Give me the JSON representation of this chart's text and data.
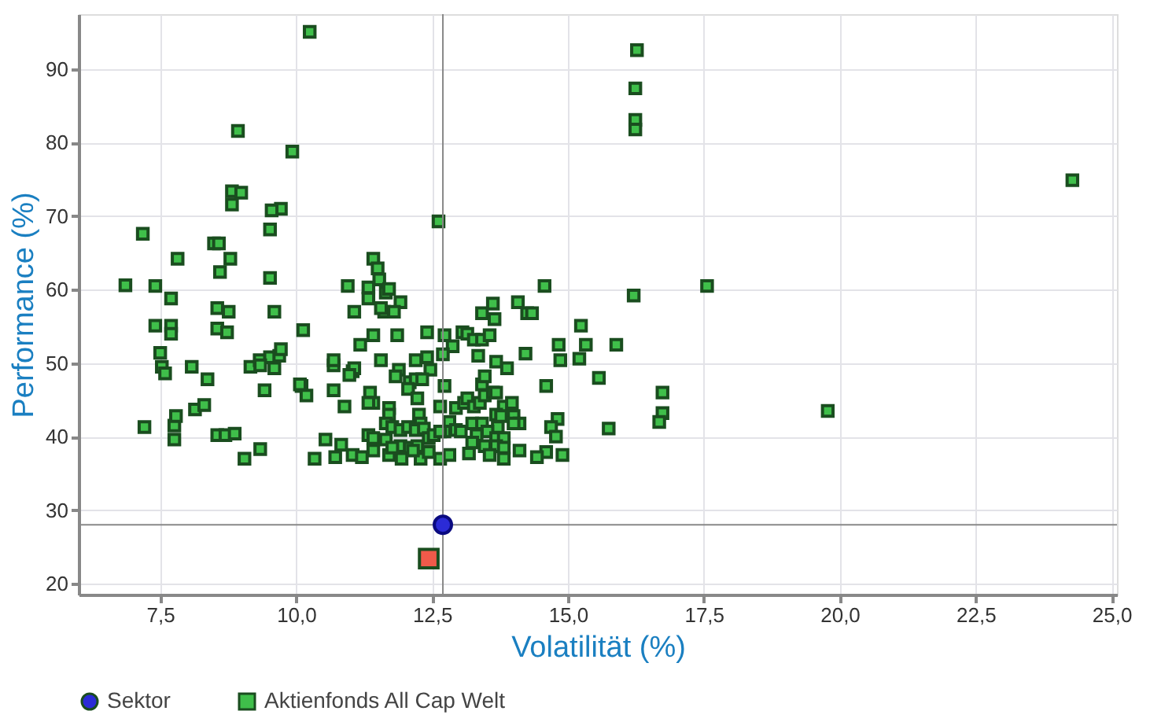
{
  "chart_data": {
    "type": "scatter",
    "xlabel": "Volatilität (%)",
    "ylabel": "Performance (%)",
    "xlim": [
      6.0,
      25.1
    ],
    "ylim": [
      18.5,
      97.5
    ],
    "xticks": [
      {
        "value": 7.5,
        "label": "7,5"
      },
      {
        "value": 10.0,
        "label": "10,0"
      },
      {
        "value": 12.5,
        "label": "12,5"
      },
      {
        "value": 15.0,
        "label": "15,0"
      },
      {
        "value": 17.5,
        "label": "17,5"
      },
      {
        "value": 20.0,
        "label": "20,0"
      },
      {
        "value": 22.5,
        "label": "22,5"
      },
      {
        "value": 25.0,
        "label": "25,0"
      }
    ],
    "yticks": [
      20,
      30,
      40,
      50,
      60,
      70,
      80,
      90
    ],
    "grid": true,
    "legend": "bottom",
    "ref_lines": [
      {
        "axis": "x",
        "value": 12.7,
        "color": "#888888"
      },
      {
        "axis": "y",
        "value": 28,
        "color": "#888888"
      }
    ],
    "series": [
      {
        "color": "#f05a4a",
        "marker": "square",
        "x": [
          12.44
        ],
        "values": [
          23.4
        ]
      },
      {
        "name": "Sektor",
        "color": "#2b2bd6",
        "marker": "circle",
        "x": [
          12.7
        ],
        "values": [
          28.0
        ]
      },
      {
        "name": "Aktienfonds All Cap  Welt",
        "color": "#3fbf4a",
        "marker": "square",
        "x": [
          10.25,
          8.93,
          9.93,
          8.82,
          8.99,
          8.82,
          9.72,
          9.55,
          9.52,
          7.18,
          7.82,
          8.49,
          8.58,
          8.79,
          8.6,
          9.52,
          6.86,
          7.41,
          7.7,
          8.55,
          8.76,
          9.6,
          7.41,
          7.7,
          7.7,
          8.55,
          8.73,
          10.13,
          7.5,
          7.53,
          7.59,
          8.08,
          8.37,
          9.16,
          9.33,
          9.52,
          9.69,
          9.72,
          9.6,
          9.34,
          9.42,
          10.1,
          10.19,
          8.14,
          8.31,
          7.76,
          7.79,
          7.21,
          8.55,
          8.7,
          8.87,
          9.34,
          9.05,
          7.76,
          10.34,
          12.62,
          11.42,
          11.5,
          11.53,
          10.95,
          11.33,
          11.33,
          11.65,
          11.71,
          11.92,
          11.62,
          11.8,
          11.56,
          11.07,
          11.42,
          11.86,
          11.18,
          12.41,
          12.73,
          13.06,
          13.15,
          13.27,
          13.42,
          13.56,
          12.88,
          13.35,
          13.42,
          13.62,
          13.65,
          14.08,
          14.25,
          14.34,
          14.57,
          15.24,
          14.83,
          15.33,
          14.86,
          15.21,
          15.89,
          16.21,
          17.56,
          14.22,
          13.68,
          13.88,
          15.57,
          14.6,
          16.74,
          16.74,
          16.68,
          15.75,
          14.81,
          14.69,
          14.78,
          14.6,
          14.43,
          14.9,
          14.11,
          10.69,
          10.69,
          11.04,
          11.07,
          11.56,
          12.2,
          12.41,
          12.47,
          11.89,
          11.83,
          12.09,
          12.2,
          12.32,
          12.73,
          12.06,
          10.07,
          10.69,
          10.89,
          11.36,
          11.42,
          11.33,
          11.71,
          11.71,
          11.65,
          12.23,
          12.26,
          12.29,
          12.65,
          12.94,
          13.09,
          13.15,
          13.27,
          13.38,
          13.47,
          13.62,
          13.42,
          13.47,
          13.68,
          13.82,
          13.97,
          13.68,
          13.77,
          14.0,
          14.11,
          14.0,
          13.24,
          13.42,
          13.71,
          12.82,
          12.94,
          12.73,
          13.03,
          13.32,
          13.52,
          13.68,
          13.82,
          13.24,
          13.47,
          13.68,
          13.82,
          13.18,
          13.56,
          13.82,
          11.77,
          11.92,
          12.06,
          12.2,
          12.35,
          12.44,
          12.53,
          12.65,
          11.33,
          11.42,
          11.65,
          11.92,
          12.09,
          12.23,
          10.54,
          10.83,
          11.04,
          11.21,
          11.42,
          10.72,
          11.71,
          11.94,
          12.29,
          12.65,
          12.82,
          11.77,
          12.15,
          12.44,
          16.27,
          16.24,
          16.24,
          16.24,
          24.28,
          19.78,
          10.98,
          12.7
        ],
        "values": [
          95.1,
          81.6,
          78.8,
          73.4,
          73.2,
          71.6,
          71.0,
          70.8,
          68.2,
          67.6,
          64.2,
          66.3,
          66.3,
          64.2,
          62.4,
          61.6,
          60.6,
          60.5,
          58.8,
          57.5,
          57.0,
          57.0,
          55.1,
          55.1,
          54.0,
          54.7,
          54.2,
          54.5,
          51.4,
          49.5,
          48.6,
          49.5,
          47.8,
          49.5,
          50.4,
          50.8,
          51.0,
          51.9,
          49.3,
          49.7,
          46.3,
          46.9,
          45.6,
          43.7,
          44.3,
          41.5,
          42.8,
          41.3,
          40.2,
          40.2,
          40.4,
          38.3,
          37.0,
          39.6,
          37.0,
          69.3,
          64.2,
          62.9,
          61.4,
          60.5,
          60.3,
          58.8,
          59.6,
          60.1,
          58.3,
          57.0,
          57.0,
          57.5,
          57.0,
          53.8,
          53.8,
          52.5,
          54.2,
          53.8,
          54.2,
          54.0,
          53.2,
          53.2,
          53.8,
          52.3,
          51.0,
          56.8,
          58.1,
          56.0,
          58.3,
          56.8,
          56.8,
          60.5,
          55.1,
          52.5,
          52.5,
          50.4,
          50.6,
          52.5,
          59.2,
          60.5,
          51.3,
          50.2,
          49.3,
          48.0,
          46.9,
          46.0,
          43.2,
          42.0,
          41.1,
          42.4,
          41.3,
          40.0,
          37.9,
          37.2,
          37.5,
          38.1,
          49.7,
          50.4,
          48.9,
          49.3,
          50.4,
          50.4,
          50.8,
          49.1,
          49.1,
          48.2,
          47.4,
          47.8,
          47.8,
          46.9,
          46.5,
          47.1,
          46.3,
          44.1,
          46.0,
          44.6,
          44.6,
          43.9,
          43.0,
          41.8,
          45.2,
          43.0,
          41.8,
          44.1,
          43.9,
          44.6,
          45.2,
          44.1,
          44.6,
          45.6,
          46.0,
          47.1,
          48.2,
          46.0,
          44.1,
          44.6,
          43.0,
          42.8,
          42.8,
          41.8,
          41.8,
          41.8,
          41.8,
          41.3,
          42.0,
          40.9,
          40.7,
          40.7,
          40.2,
          40.7,
          39.8,
          39.8,
          39.2,
          38.7,
          38.7,
          38.5,
          37.7,
          37.5,
          37.0,
          41.3,
          40.9,
          41.3,
          40.9,
          41.1,
          39.8,
          40.2,
          40.7,
          40.2,
          39.8,
          39.6,
          38.7,
          38.5,
          38.7,
          39.6,
          38.9,
          37.5,
          37.2,
          38.1,
          37.2,
          37.5,
          37.0,
          37.0,
          37.0,
          37.5,
          38.5,
          38.1,
          37.9,
          92.6,
          87.4,
          83.1,
          81.8,
          74.9,
          43.5,
          48.4,
          51.2
        ]
      }
    ]
  }
}
